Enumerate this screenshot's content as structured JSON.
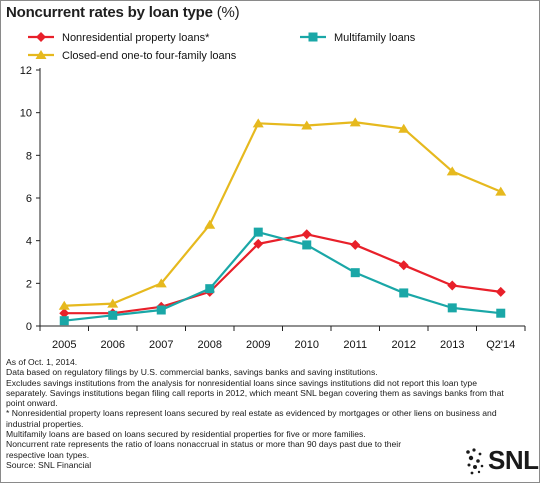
{
  "title": "Noncurrent rates by loan type",
  "title_unit": "(%)",
  "chart_data": {
    "type": "line",
    "title": "Noncurrent rates by loan type (%)",
    "categories": [
      "2005",
      "2006",
      "2007",
      "2008",
      "2009",
      "2010",
      "2011",
      "2012",
      "2013",
      "Q2'14"
    ],
    "ylim": [
      0,
      12
    ],
    "yticks": [
      0,
      2,
      4,
      6,
      8,
      10,
      12
    ],
    "grid": false,
    "legend_position": "top",
    "series": [
      {
        "name": "Nonresidential property loans*",
        "color": "#e8202a",
        "marker": "diamond",
        "values": [
          0.6,
          0.6,
          0.9,
          1.6,
          3.85,
          4.3,
          3.8,
          2.85,
          1.9,
          1.6
        ]
      },
      {
        "name": "Multifamily loans",
        "color": "#1aa7a7",
        "marker": "square",
        "values": [
          0.25,
          0.5,
          0.75,
          1.75,
          4.4,
          3.8,
          2.5,
          1.55,
          0.85,
          0.6
        ]
      },
      {
        "name": "Closed-end one-to four-family loans",
        "color": "#e6b91e",
        "marker": "triangle",
        "values": [
          0.95,
          1.05,
          2.0,
          4.75,
          9.5,
          9.4,
          9.55,
          9.25,
          7.25,
          6.3
        ]
      }
    ]
  },
  "notes": [
    "As of Oct. 1, 2014.",
    "Data based on regulatory filings by U.S. commercial banks, savings banks and saving institutions.",
    "Excludes savings institutions from the analysis for nonresidential loans since savings institutions did not report this loan type separately. Savings institutions began filing call reports in 2012, which meant SNL began covering them as savings banks from that point onward.",
    "* Nonresidential property loans represent loans secured by real estate as evidenced by mortgages or other liens on business and industrial properties.",
    "Multifamily loans are based on loans secured by residential properties for five or more families.",
    "Noncurrent rate represents the ratio of loans nonaccrual in status or more than 90 days past due to their respective loan types.",
    "Source: SNL Financial"
  ],
  "logo_text": "SNL",
  "colors": {
    "frame": "#8a8a8a",
    "axis": "#222222"
  }
}
